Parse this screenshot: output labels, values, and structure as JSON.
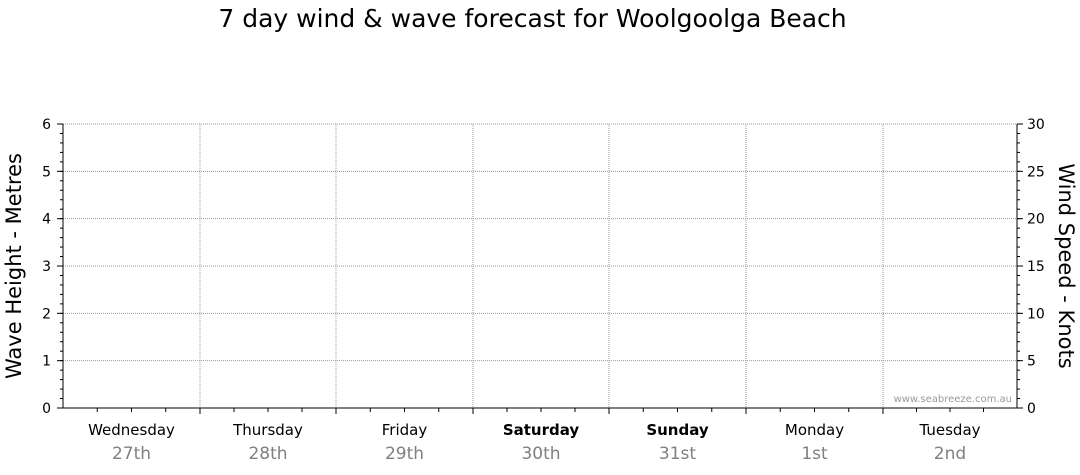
{
  "chart_data": {
    "type": "line",
    "title": "7 day wind & wave forecast for Woolgoolga Beach",
    "ylabel_left": "Wave Height - Metres",
    "ylabel_right": "Wind Speed - Knots",
    "ylim_left": [
      0,
      6
    ],
    "ylim_right": [
      0,
      30
    ],
    "left_ticks": [
      "0",
      "1",
      "2",
      "3",
      "4",
      "5",
      "6"
    ],
    "right_ticks": [
      "0",
      "5",
      "10",
      "15",
      "20",
      "25",
      "30"
    ],
    "grid": true,
    "days": [
      {
        "name": "Wednesday",
        "date": "27th",
        "bold": false
      },
      {
        "name": "Thursday",
        "date": "28th",
        "bold": false
      },
      {
        "name": "Friday",
        "date": "29th",
        "bold": false
      },
      {
        "name": "Saturday",
        "date": "30th",
        "bold": true
      },
      {
        "name": "Sunday",
        "date": "31st",
        "bold": true
      },
      {
        "name": "Monday",
        "date": "1st",
        "bold": false
      },
      {
        "name": "Tuesday",
        "date": "2nd",
        "bold": false
      }
    ],
    "series": [],
    "watermark": "www.seabreeze.com.au"
  }
}
